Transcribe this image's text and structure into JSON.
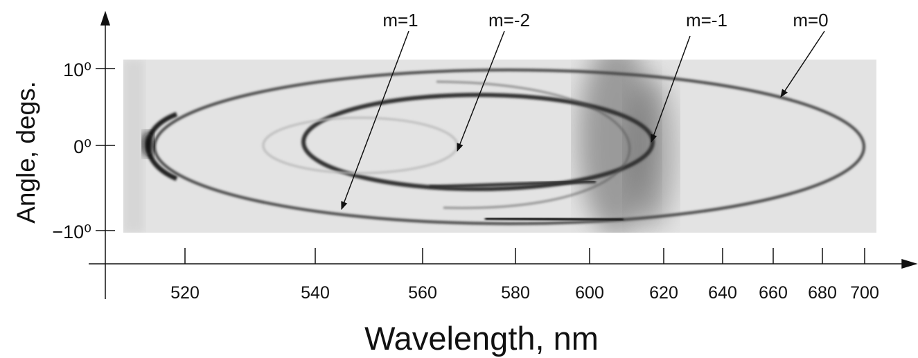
{
  "figure": {
    "labels": [
      "m=1",
      "m=-2",
      "m=-1",
      "m=0"
    ],
    "x_axis": {
      "title": "Wavelength, nm",
      "ticks": [
        "520",
        "540",
        "560",
        "580",
        "600",
        "620",
        "640",
        "660",
        "680",
        "700"
      ]
    },
    "y_axis": {
      "title": "Angle, degs.",
      "ticks": [
        "10⁰",
        "0⁰",
        "−10⁰"
      ]
    }
  }
}
